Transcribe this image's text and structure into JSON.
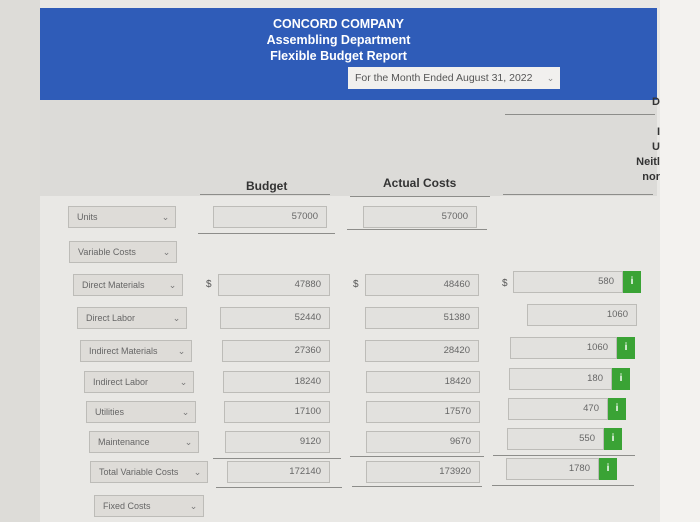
{
  "header": {
    "company": "CONCORD COMPANY",
    "department": "Assembling Department",
    "report": "Flexible Budget Report",
    "period": "For the Month Ended August 31, 2022"
  },
  "columns": {
    "budget": "Budget",
    "actual": "Actual Costs",
    "difference_partial": [
      "D",
      "I",
      "U",
      "Neitl",
      "nor"
    ]
  },
  "rows": [
    {
      "label": "Units",
      "budget": "57000",
      "actual": "57000",
      "diff": "",
      "dollar": false,
      "info": false
    },
    {
      "label": "Variable Costs",
      "budget": "",
      "actual": "",
      "diff": "",
      "dollar": false,
      "info": false,
      "header": true
    },
    {
      "label": "Direct Materials",
      "budget": "47880",
      "actual": "48460",
      "diff": "580",
      "dollar": true,
      "info": true
    },
    {
      "label": "Direct Labor",
      "budget": "52440",
      "actual": "51380",
      "diff": "1060",
      "dollar": false,
      "info": false
    },
    {
      "label": "Indirect Materials",
      "budget": "27360",
      "actual": "28420",
      "diff": "1060",
      "dollar": false,
      "info": true
    },
    {
      "label": "Indirect Labor",
      "budget": "18240",
      "actual": "18420",
      "diff": "180",
      "dollar": false,
      "info": true
    },
    {
      "label": "Utilities",
      "budget": "17100",
      "actual": "17570",
      "diff": "470",
      "dollar": false,
      "info": true
    },
    {
      "label": "Maintenance",
      "budget": "9120",
      "actual": "9670",
      "diff": "550",
      "dollar": false,
      "info": true
    },
    {
      "label": "Total Variable Costs",
      "budget": "172140",
      "actual": "173920",
      "diff": "1780",
      "dollar": false,
      "info": true
    },
    {
      "label": "Fixed Costs",
      "budget": "",
      "actual": "",
      "diff": "",
      "dollar": false,
      "info": false,
      "header": true
    }
  ],
  "currency_symbol": "$",
  "info_symbol": "i",
  "colors": {
    "banner": "#2f5cb8",
    "info": "#3aa335"
  }
}
